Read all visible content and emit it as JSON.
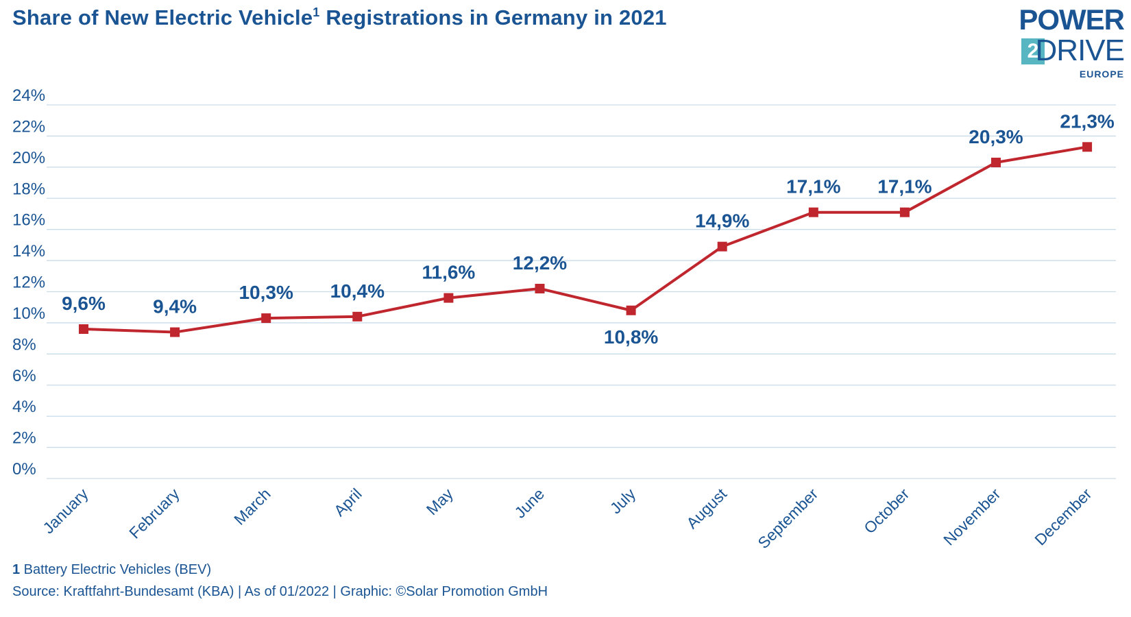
{
  "title": {
    "text": "Share of New Electric Vehicle",
    "sup": "1",
    "rest": " Registrations in Germany in 2021"
  },
  "logo": {
    "line1": "POWER",
    "digit": "2",
    "line2": "DRIVE",
    "line3": "EUROPE"
  },
  "footnote": {
    "number": "1",
    "text": " Battery Electric Vehicles (BEV)"
  },
  "source": "Source: Kraftfahrt-Bundesamt (KBA) | As of 01/2022 | Graphic: ©Solar Promotion GmbH",
  "colors": {
    "title": "#1a5493",
    "axis_text": "#1a5493",
    "line": "#c0262d",
    "grid": "#c9dcea",
    "logo_accent": "#57b6c1"
  },
  "chart_data": {
    "type": "line",
    "title": "Share of New Electric Vehicle1 Registrations in Germany in 2021",
    "xlabel": "",
    "ylabel": "",
    "categories": [
      "January",
      "February",
      "March",
      "April",
      "May",
      "June",
      "July",
      "August",
      "September",
      "October",
      "November",
      "December"
    ],
    "series": [
      {
        "values": [
          9.6,
          9.4,
          10.3,
          10.4,
          11.6,
          12.2,
          10.8,
          14.9,
          17.1,
          17.1,
          20.3,
          21.3
        ],
        "labels": [
          "9,6%",
          "9,4%",
          "10,3%",
          "10,4%",
          "11,6%",
          "12,2%",
          "10,8%",
          "14,9%",
          "17,1%",
          "17,1%",
          "20,3%",
          "21,3%"
        ],
        "label_position": [
          "above",
          "above",
          "above",
          "above",
          "above",
          "above",
          "below",
          "above",
          "above",
          "above",
          "above",
          "above"
        ]
      }
    ],
    "ylim": [
      0,
      24
    ],
    "yticks": [
      0,
      2,
      4,
      6,
      8,
      10,
      12,
      14,
      16,
      18,
      20,
      22,
      24
    ],
    "ytick_labels": [
      "0%",
      "2%",
      "4%",
      "6%",
      "8%",
      "10%",
      "12%",
      "14%",
      "16%",
      "18%",
      "20%",
      "22%",
      "24%"
    ],
    "grid": true,
    "legend": "none",
    "marker": "square"
  }
}
